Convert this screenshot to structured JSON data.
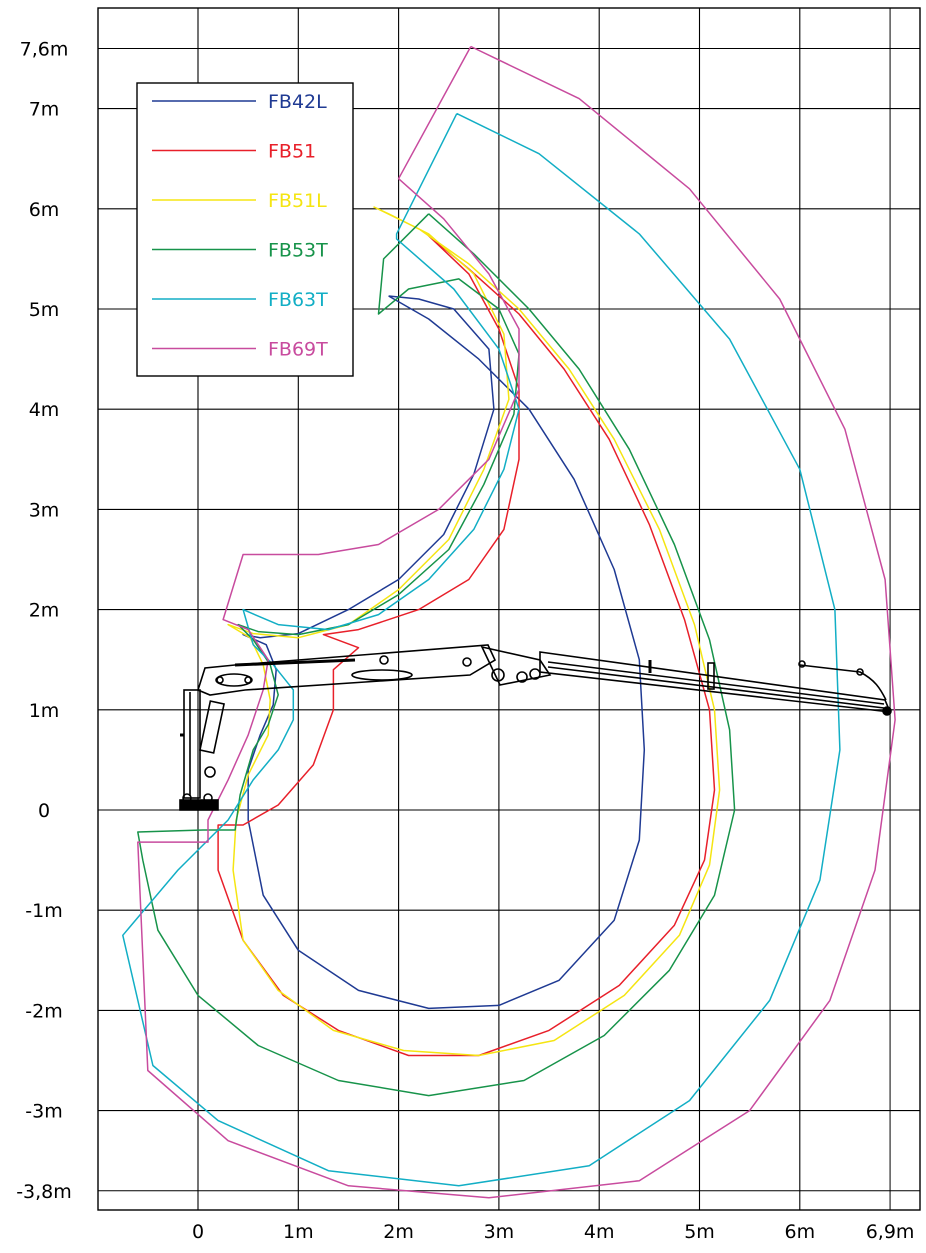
{
  "chart_data": {
    "type": "line",
    "title": "",
    "xlabel": "",
    "ylabel": "",
    "x_ticks": [
      {
        "value": 0,
        "label": "0"
      },
      {
        "value": 1,
        "label": "1m"
      },
      {
        "value": 2,
        "label": "2m"
      },
      {
        "value": 3,
        "label": "3m"
      },
      {
        "value": 4,
        "label": "4m"
      },
      {
        "value": 5,
        "label": "5m"
      },
      {
        "value": 6,
        "label": "6m"
      },
      {
        "value": 6.9,
        "label": "6,9m"
      }
    ],
    "y_ticks": [
      {
        "value": 7.6,
        "label": "7,6m"
      },
      {
        "value": 7,
        "label": "7m"
      },
      {
        "value": 6,
        "label": "6m"
      },
      {
        "value": 5,
        "label": "5m"
      },
      {
        "value": 4,
        "label": "4m"
      },
      {
        "value": 3,
        "label": "3m"
      },
      {
        "value": 2,
        "label": "2m"
      },
      {
        "value": 1,
        "label": "1m"
      },
      {
        "value": 0,
        "label": "0"
      },
      {
        "value": -1,
        "label": "-1m"
      },
      {
        "value": -2,
        "label": "-2m"
      },
      {
        "value": -3,
        "label": "-3m"
      },
      {
        "value": -3.8,
        "label": "-3,8m"
      }
    ],
    "xlim": [
      -1.0,
      7.25
    ],
    "ylim": [
      -4.1,
      7.95
    ],
    "grid": true,
    "legend_position": "top-left",
    "series": [
      {
        "name": "FB42L",
        "color": "#1f3a93",
        "points": [
          [
            1.9,
            5.13
          ],
          [
            2.3,
            4.9
          ],
          [
            2.8,
            4.5
          ],
          [
            3.3,
            4.0
          ],
          [
            3.75,
            3.3
          ],
          [
            4.15,
            2.4
          ],
          [
            4.4,
            1.5
          ],
          [
            4.45,
            0.6
          ],
          [
            4.4,
            -0.3
          ],
          [
            4.15,
            -1.1
          ],
          [
            3.6,
            -1.7
          ],
          [
            3.0,
            -1.95
          ],
          [
            2.3,
            -1.98
          ],
          [
            1.6,
            -1.8
          ],
          [
            1.0,
            -1.4
          ],
          [
            0.65,
            -0.85
          ],
          [
            0.5,
            -0.1
          ],
          [
            0.5,
            0.4
          ],
          [
            0.62,
            0.75
          ],
          [
            0.75,
            1.05
          ],
          [
            0.78,
            1.4
          ],
          [
            0.68,
            1.65
          ],
          [
            0.45,
            1.75
          ],
          [
            0.62,
            1.72
          ],
          [
            1.0,
            1.76
          ],
          [
            1.5,
            2.0
          ],
          [
            2.0,
            2.3
          ],
          [
            2.45,
            2.75
          ],
          [
            2.75,
            3.35
          ],
          [
            2.95,
            4.0
          ],
          [
            2.9,
            4.6
          ],
          [
            2.55,
            5.0
          ],
          [
            2.2,
            5.1
          ],
          [
            1.9,
            5.13
          ]
        ]
      },
      {
        "name": "FB51",
        "color": "#e8202a",
        "points": [
          [
            2.28,
            5.75
          ],
          [
            2.7,
            5.4
          ],
          [
            3.2,
            4.95
          ],
          [
            3.65,
            4.4
          ],
          [
            4.1,
            3.7
          ],
          [
            4.5,
            2.85
          ],
          [
            4.85,
            1.9
          ],
          [
            5.1,
            1.0
          ],
          [
            5.15,
            0.2
          ],
          [
            5.05,
            -0.5
          ],
          [
            4.75,
            -1.15
          ],
          [
            4.2,
            -1.75
          ],
          [
            3.5,
            -2.2
          ],
          [
            2.8,
            -2.45
          ],
          [
            2.1,
            -2.45
          ],
          [
            1.4,
            -2.2
          ],
          [
            0.85,
            -1.85
          ],
          [
            0.45,
            -1.3
          ],
          [
            0.2,
            -0.6
          ],
          [
            0.2,
            -0.15
          ],
          [
            0.45,
            -0.15
          ],
          [
            0.8,
            0.05
          ],
          [
            1.15,
            0.45
          ],
          [
            1.35,
            1.0
          ],
          [
            1.35,
            1.4
          ],
          [
            1.6,
            1.62
          ],
          [
            1.25,
            1.75
          ],
          [
            1.6,
            1.8
          ],
          [
            2.2,
            2.0
          ],
          [
            2.7,
            2.3
          ],
          [
            3.05,
            2.8
          ],
          [
            3.2,
            3.5
          ],
          [
            3.2,
            4.2
          ],
          [
            3.0,
            4.8
          ],
          [
            2.7,
            5.35
          ],
          [
            2.28,
            5.75
          ]
        ]
      },
      {
        "name": "FB51L",
        "color": "#f5e512",
        "points": [
          [
            1.75,
            6.02
          ],
          [
            2.2,
            5.8
          ],
          [
            2.7,
            5.45
          ],
          [
            3.2,
            5.0
          ],
          [
            3.7,
            4.4
          ],
          [
            4.15,
            3.7
          ],
          [
            4.6,
            2.8
          ],
          [
            4.95,
            1.85
          ],
          [
            5.15,
            1.0
          ],
          [
            5.2,
            0.2
          ],
          [
            5.1,
            -0.55
          ],
          [
            4.8,
            -1.25
          ],
          [
            4.25,
            -1.85
          ],
          [
            3.55,
            -2.3
          ],
          [
            2.8,
            -2.45
          ],
          [
            2.05,
            -2.4
          ],
          [
            1.35,
            -2.2
          ],
          [
            0.8,
            -1.8
          ],
          [
            0.45,
            -1.3
          ],
          [
            0.35,
            -0.6
          ],
          [
            0.38,
            -0.1
          ],
          [
            0.5,
            0.35
          ],
          [
            0.7,
            0.75
          ],
          [
            0.72,
            1.1
          ],
          [
            0.65,
            1.45
          ],
          [
            0.52,
            1.72
          ],
          [
            0.3,
            1.85
          ],
          [
            0.55,
            1.76
          ],
          [
            1.0,
            1.72
          ],
          [
            1.5,
            1.85
          ],
          [
            2.0,
            2.2
          ],
          [
            2.5,
            2.7
          ],
          [
            2.85,
            3.4
          ],
          [
            3.1,
            4.1
          ],
          [
            3.05,
            4.75
          ],
          [
            2.75,
            5.35
          ],
          [
            2.3,
            5.75
          ],
          [
            1.9,
            5.95
          ],
          [
            1.75,
            6.02
          ]
        ]
      },
      {
        "name": "FB53T",
        "color": "#17934a",
        "points": [
          [
            2.3,
            5.95
          ],
          [
            2.75,
            5.55
          ],
          [
            3.3,
            5.0
          ],
          [
            3.8,
            4.4
          ],
          [
            4.3,
            3.6
          ],
          [
            4.75,
            2.65
          ],
          [
            5.1,
            1.7
          ],
          [
            5.3,
            0.8
          ],
          [
            5.35,
            0.0
          ],
          [
            5.15,
            -0.85
          ],
          [
            4.7,
            -1.6
          ],
          [
            4.05,
            -2.25
          ],
          [
            3.25,
            -2.7
          ],
          [
            2.3,
            -2.85
          ],
          [
            1.4,
            -2.7
          ],
          [
            0.6,
            -2.35
          ],
          [
            0.0,
            -1.85
          ],
          [
            -0.4,
            -1.2
          ],
          [
            -0.55,
            -0.5
          ],
          [
            -0.6,
            -0.22
          ],
          [
            0.05,
            -0.2
          ],
          [
            0.37,
            -0.2
          ],
          [
            0.42,
            0.15
          ],
          [
            0.55,
            0.6
          ],
          [
            0.7,
            0.85
          ],
          [
            0.8,
            1.15
          ],
          [
            0.72,
            1.45
          ],
          [
            0.55,
            1.7
          ],
          [
            0.4,
            1.85
          ],
          [
            0.6,
            1.78
          ],
          [
            1.0,
            1.75
          ],
          [
            1.5,
            1.85
          ],
          [
            2.0,
            2.15
          ],
          [
            2.5,
            2.6
          ],
          [
            2.85,
            3.25
          ],
          [
            3.15,
            3.95
          ],
          [
            3.2,
            4.55
          ],
          [
            3.0,
            5.0
          ],
          [
            2.6,
            5.3
          ],
          [
            2.1,
            5.2
          ],
          [
            1.8,
            4.95
          ],
          [
            1.85,
            5.5
          ],
          [
            2.3,
            5.95
          ]
        ]
      },
      {
        "name": "FB63T",
        "color": "#12aec5",
        "points": [
          [
            2.58,
            6.95
          ],
          [
            3.4,
            6.55
          ],
          [
            4.4,
            5.75
          ],
          [
            5.3,
            4.7
          ],
          [
            6.0,
            3.4
          ],
          [
            6.35,
            2.0
          ],
          [
            6.4,
            0.6
          ],
          [
            6.2,
            -0.7
          ],
          [
            5.7,
            -1.9
          ],
          [
            4.9,
            -2.9
          ],
          [
            3.9,
            -3.55
          ],
          [
            2.6,
            -3.75
          ],
          [
            1.3,
            -3.6
          ],
          [
            0.2,
            -3.1
          ],
          [
            -0.45,
            -2.55
          ],
          [
            -0.75,
            -1.25
          ],
          [
            -0.2,
            -0.6
          ],
          [
            0.3,
            -0.1
          ],
          [
            0.55,
            0.3
          ],
          [
            0.8,
            0.6
          ],
          [
            0.95,
            0.9
          ],
          [
            0.95,
            1.2
          ],
          [
            0.75,
            1.45
          ],
          [
            0.55,
            1.65
          ],
          [
            0.45,
            2.0
          ],
          [
            0.8,
            1.85
          ],
          [
            1.3,
            1.8
          ],
          [
            1.8,
            1.95
          ],
          [
            2.3,
            2.3
          ],
          [
            2.75,
            2.8
          ],
          [
            3.05,
            3.4
          ],
          [
            3.2,
            4.0
          ],
          [
            3.0,
            4.6
          ],
          [
            2.55,
            5.2
          ],
          [
            1.98,
            5.7
          ],
          [
            1.98,
            5.75
          ],
          [
            2.58,
            6.95
          ]
        ]
      },
      {
        "name": "FB69T",
        "color": "#c84b9e",
        "points": [
          [
            2.72,
            7.62
          ],
          [
            3.8,
            7.1
          ],
          [
            4.9,
            6.2
          ],
          [
            5.8,
            5.1
          ],
          [
            6.45,
            3.8
          ],
          [
            6.85,
            2.3
          ],
          [
            6.95,
            0.9
          ],
          [
            6.75,
            -0.6
          ],
          [
            6.3,
            -1.9
          ],
          [
            5.5,
            -3.0
          ],
          [
            4.4,
            -3.7
          ],
          [
            2.9,
            -3.87
          ],
          [
            1.5,
            -3.75
          ],
          [
            0.3,
            -3.3
          ],
          [
            -0.5,
            -2.6
          ],
          [
            -0.6,
            -0.32
          ],
          [
            0.1,
            -0.32
          ],
          [
            0.1,
            -0.1
          ],
          [
            0.3,
            0.3
          ],
          [
            0.5,
            0.75
          ],
          [
            0.65,
            1.2
          ],
          [
            0.7,
            1.5
          ],
          [
            0.5,
            1.8
          ],
          [
            0.25,
            1.9
          ],
          [
            0.45,
            2.55
          ],
          [
            1.2,
            2.55
          ],
          [
            1.8,
            2.65
          ],
          [
            2.4,
            3.0
          ],
          [
            2.9,
            3.5
          ],
          [
            3.2,
            4.2
          ],
          [
            3.2,
            4.8
          ],
          [
            2.9,
            5.35
          ],
          [
            2.45,
            5.9
          ],
          [
            2.0,
            6.3
          ],
          [
            2.72,
            7.62
          ]
        ]
      }
    ]
  }
}
